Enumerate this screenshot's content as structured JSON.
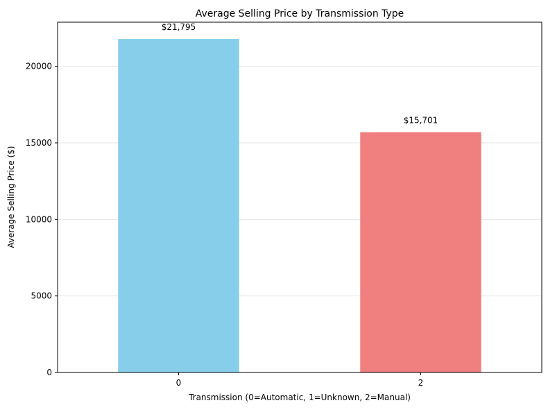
{
  "chart_data": {
    "type": "bar",
    "title": "Average Selling Price by Transmission Type",
    "xlabel": "Transmission (0=Automatic, 1=Unknown, 2=Manual)",
    "ylabel": "Average Selling Price ($)",
    "categories": [
      "0",
      "2"
    ],
    "values": [
      21795,
      15701
    ],
    "value_labels": [
      "$21,795",
      "$15,701"
    ],
    "bar_colors": [
      "#87CEEB",
      "#F08080"
    ],
    "ylim": [
      0,
      22885
    ],
    "yticks": [
      0,
      5000,
      10000,
      15000,
      20000
    ],
    "ytick_labels": [
      "0",
      "5000",
      "10000",
      "15000",
      "20000"
    ],
    "grid": true,
    "grid_axis": "y",
    "legend": false
  }
}
